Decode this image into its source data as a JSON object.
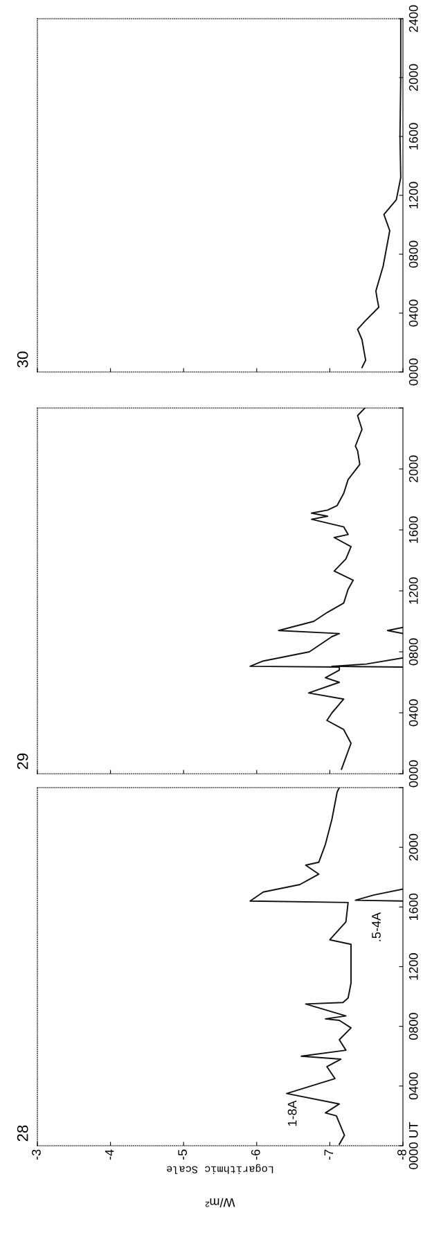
{
  "chart_data": [
    {
      "type": "line",
      "title": "28",
      "xlabel": "Logarithmic Scale",
      "annotations": [
        "W/m²",
        "1-8A",
        ".5-4A"
      ],
      "xlim": [
        -3,
        -8
      ],
      "xticks": [
        -3,
        -4,
        -5,
        -6,
        -7,
        -8
      ],
      "ylim": [
        0,
        2400
      ],
      "yticks": [
        {
          "value": 0,
          "label": "0000 UT"
        },
        {
          "value": 400,
          "label": "0400"
        },
        {
          "value": 800,
          "label": "0800"
        },
        {
          "value": 1200,
          "label": "1200"
        },
        {
          "value": 1600,
          "label": "1600"
        },
        {
          "value": 2000,
          "label": "2000"
        },
        {
          "value": 2400,
          "label": null
        }
      ],
      "series": [
        {
          "color": "#111111",
          "x": [
            -7.13,
            -7.2,
            -7.09,
            -6.94,
            -7.13,
            -6.41,
            -7.07,
            -6.96,
            -7.15,
            -6.61,
            -7.22,
            -7.13,
            -7.29,
            -7.13,
            -6.94,
            -7.22,
            -6.67,
            -7.18,
            -7.25,
            -7.29,
            -7.29,
            -7.0,
            -7.22,
            -7.25,
            -5.91,
            -6.09,
            -6.59,
            -6.85,
            -6.67,
            -6.85,
            -6.94,
            -7.03,
            -7.1,
            -7.13
          ],
          "values": [
            10,
            70,
            200,
            220,
            280,
            350,
            450,
            530,
            580,
            600,
            640,
            710,
            790,
            840,
            850,
            870,
            950,
            960,
            990,
            1090,
            1350,
            1380,
            1500,
            1630,
            1640,
            1700,
            1750,
            1820,
            1880,
            1900,
            2020,
            2190,
            2370,
            2400
          ]
        },
        {
          "color": "#111111",
          "x": [
            -8.0,
            -7.35,
            -7.6,
            -8.0
          ],
          "values": [
            1640,
            1645,
            1680,
            1720
          ]
        }
      ]
    },
    {
      "type": "line",
      "title": "29",
      "tick_labels": "y",
      "xlim": [
        -3,
        -8
      ],
      "xticks": [
        -3,
        -4,
        -5,
        -6,
        -7,
        -8
      ],
      "ylim": [
        0,
        2400
      ],
      "yticks": [
        {
          "value": 0,
          "label": "0000"
        },
        {
          "value": 400,
          "label": "0400"
        },
        {
          "value": 800,
          "label": "0800"
        },
        {
          "value": 1200,
          "label": "1200"
        },
        {
          "value": 1600,
          "label": "1600"
        },
        {
          "value": 2000,
          "label": "2000"
        },
        {
          "value": 2400,
          "label": null
        }
      ],
      "series": [
        {
          "color": "#111111",
          "x": [
            -7.16,
            -7.29,
            -7.19,
            -6.96,
            -7.03,
            -7.19,
            -6.71,
            -7.13,
            -6.94,
            -7.13,
            -7.13,
            -5.91,
            -6.09,
            -6.72,
            -7.03,
            -7.13,
            -6.3,
            -6.78,
            -6.97,
            -7.19,
            -7.25,
            -7.32,
            -7.06,
            -7.22,
            -7.29,
            -7.06,
            -7.25,
            -7.19,
            -6.75,
            -6.97,
            -6.75,
            -6.97,
            -7.1,
            -7.19,
            -7.25,
            -7.41,
            -7.38,
            -7.35,
            -7.44,
            -7.38,
            -7.48
          ],
          "values": [
            30,
            200,
            290,
            350,
            400,
            490,
            530,
            600,
            630,
            680,
            700,
            705,
            740,
            800,
            900,
            920,
            940,
            1000,
            1060,
            1120,
            1210,
            1270,
            1330,
            1410,
            1490,
            1550,
            1570,
            1620,
            1670,
            1690,
            1710,
            1730,
            1760,
            1840,
            1930,
            2030,
            2120,
            2150,
            2260,
            2350,
            2400
          ]
        },
        {
          "color": "#111111",
          "x": [
            -8.0,
            -7.03,
            -7.5,
            -8.0
          ],
          "values": [
            700,
            705,
            720,
            760
          ]
        },
        {
          "color": "#111111",
          "x": [
            -8.0,
            -7.79,
            -8.0
          ],
          "values": [
            920,
            940,
            960
          ]
        }
      ]
    },
    {
      "type": "line",
      "title": "30",
      "tick_labels": "y",
      "xlim": [
        -3,
        -8
      ],
      "xticks": [
        -3,
        -4,
        -5,
        -6,
        -7,
        -8
      ],
      "ylim": [
        0,
        2400
      ],
      "yticks": [
        {
          "value": 0,
          "label": "0000"
        },
        {
          "value": 400,
          "label": "0400"
        },
        {
          "value": 800,
          "label": "0800"
        },
        {
          "value": 1200,
          "label": "1200"
        },
        {
          "value": 1600,
          "label": "1600"
        },
        {
          "value": 2000,
          "label": "2000"
        },
        2400
      ],
      "series": [
        {
          "color": "#111111",
          "x": [
            -7.44,
            -7.49,
            -7.44,
            -7.38,
            -7.49,
            -7.67,
            -7.65,
            -7.63,
            -7.73,
            -7.82,
            -7.74,
            -7.91,
            -7.97,
            -7.96,
            -7.97,
            -7.97
          ],
          "values": [
            30,
            80,
            220,
            290,
            350,
            440,
            490,
            550,
            720,
            960,
            1070,
            1170,
            1320,
            1600,
            2000,
            2400
          ]
        }
      ]
    }
  ]
}
